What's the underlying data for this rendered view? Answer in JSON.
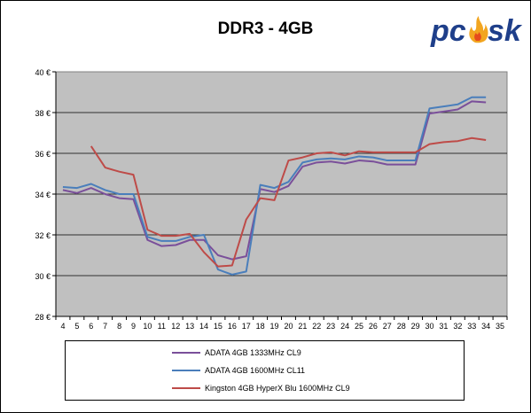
{
  "chart_data": {
    "type": "line",
    "title": "DDR3 - 4GB",
    "x": [
      4,
      5,
      6,
      7,
      8,
      9,
      10,
      11,
      12,
      13,
      14,
      15,
      16,
      17,
      18,
      19,
      20,
      21,
      22,
      23,
      24,
      25,
      26,
      27,
      28,
      29,
      30,
      31,
      32,
      33,
      34,
      35
    ],
    "ylim": [
      28,
      40
    ],
    "ytick_labels": [
      "28 €",
      "30 €",
      "32 €",
      "34 €",
      "36 €",
      "38 €",
      "40 €"
    ],
    "grid": "horizontal",
    "legend_position": "bottom",
    "series": [
      {
        "name": "ADATA 4GB 1333MHz CL9",
        "color": "#7a4f9a",
        "values": [
          34.2,
          34.05,
          34.3,
          34.0,
          33.8,
          33.75,
          31.75,
          31.45,
          31.5,
          31.75,
          31.75,
          31.0,
          30.8,
          30.95,
          34.25,
          34.1,
          34.4,
          35.35,
          35.55,
          35.6,
          35.5,
          35.65,
          35.6,
          35.45,
          35.45,
          35.45,
          37.95,
          38.05,
          38.15,
          38.55,
          38.5,
          null
        ]
      },
      {
        "name": "ADATA 4GB 1600MHz CL11",
        "color": "#4a7ebb",
        "values": [
          34.35,
          34.3,
          34.5,
          34.2,
          34.0,
          34.0,
          31.9,
          31.7,
          31.7,
          31.9,
          32.0,
          30.3,
          30.05,
          30.2,
          34.45,
          34.3,
          34.6,
          35.55,
          35.7,
          35.75,
          35.7,
          35.85,
          35.8,
          35.65,
          35.65,
          35.65,
          38.2,
          38.3,
          38.4,
          38.75,
          38.75,
          null
        ]
      },
      {
        "name": "Kingston 4GB HyperX Blu 1600MHz CL9",
        "color": "#be4b48",
        "values": [
          null,
          null,
          36.35,
          35.3,
          35.1,
          34.95,
          32.25,
          31.95,
          31.95,
          32.05,
          31.15,
          30.45,
          30.5,
          32.75,
          33.8,
          33.7,
          35.65,
          35.8,
          36.0,
          36.05,
          35.9,
          36.1,
          36.05,
          36.05,
          36.05,
          36.05,
          36.45,
          36.55,
          36.6,
          36.75,
          36.65,
          null
        ]
      }
    ]
  },
  "logo": {
    "text": "pcask",
    "alt": "pcask logo"
  }
}
